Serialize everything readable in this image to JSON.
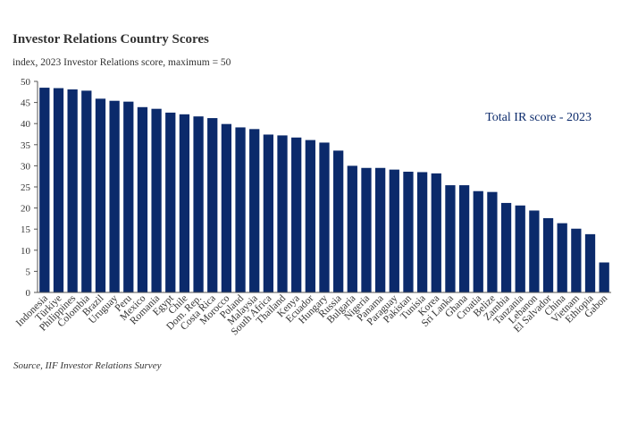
{
  "chart_data": {
    "type": "bar",
    "title": "Investor Relations Country Scores",
    "subtitle": "index, 2023 Investor Relations score, maximum = 50",
    "source": "Source, IIF Investor Relations Survey",
    "legend_label": "Total IR score - 2023",
    "legend_position": "top-right",
    "xlabel": "",
    "ylabel": "",
    "ylim": [
      0,
      50
    ],
    "yticks": [
      0,
      5,
      10,
      15,
      20,
      25,
      30,
      35,
      40,
      45,
      50
    ],
    "grid": false,
    "bar_color": "#0b2a6b",
    "categories": [
      "Indonesia",
      "Türkiye",
      "Philippines",
      "Colombia",
      "Brazil",
      "Uruguay",
      "Peru",
      "Mexico",
      "Romania",
      "Egypt",
      "Chile",
      "Dom. Rep.",
      "Costa Rica",
      "Morocco",
      "Poland",
      "Malaysia",
      "South Africa",
      "Thailand",
      "Kenya",
      "Ecuador",
      "Hungary",
      "Russia",
      "Bulgaria",
      "Nigeria",
      "Panama",
      "Paraguay",
      "Pakistan",
      "Tunisia",
      "Korea",
      "Sri Lanka",
      "Ghana",
      "Croatia",
      "Belize",
      "Zambia",
      "Tanzania",
      "Lebanon",
      "El Salvador",
      "China",
      "Vietnam",
      "Ethiopia",
      "Gabon"
    ],
    "values": [
      48.5,
      48.4,
      48.1,
      47.8,
      45.9,
      45.4,
      45.2,
      43.9,
      43.5,
      42.6,
      42.2,
      41.7,
      41.3,
      39.9,
      39.1,
      38.7,
      37.4,
      37.2,
      36.7,
      36.1,
      35.5,
      33.6,
      30.0,
      29.5,
      29.5,
      29.1,
      28.6,
      28.5,
      28.2,
      25.4,
      25.4,
      24.0,
      23.8,
      21.2,
      20.6,
      19.4,
      17.6,
      16.4,
      15.1,
      13.8,
      7.1
    ]
  }
}
